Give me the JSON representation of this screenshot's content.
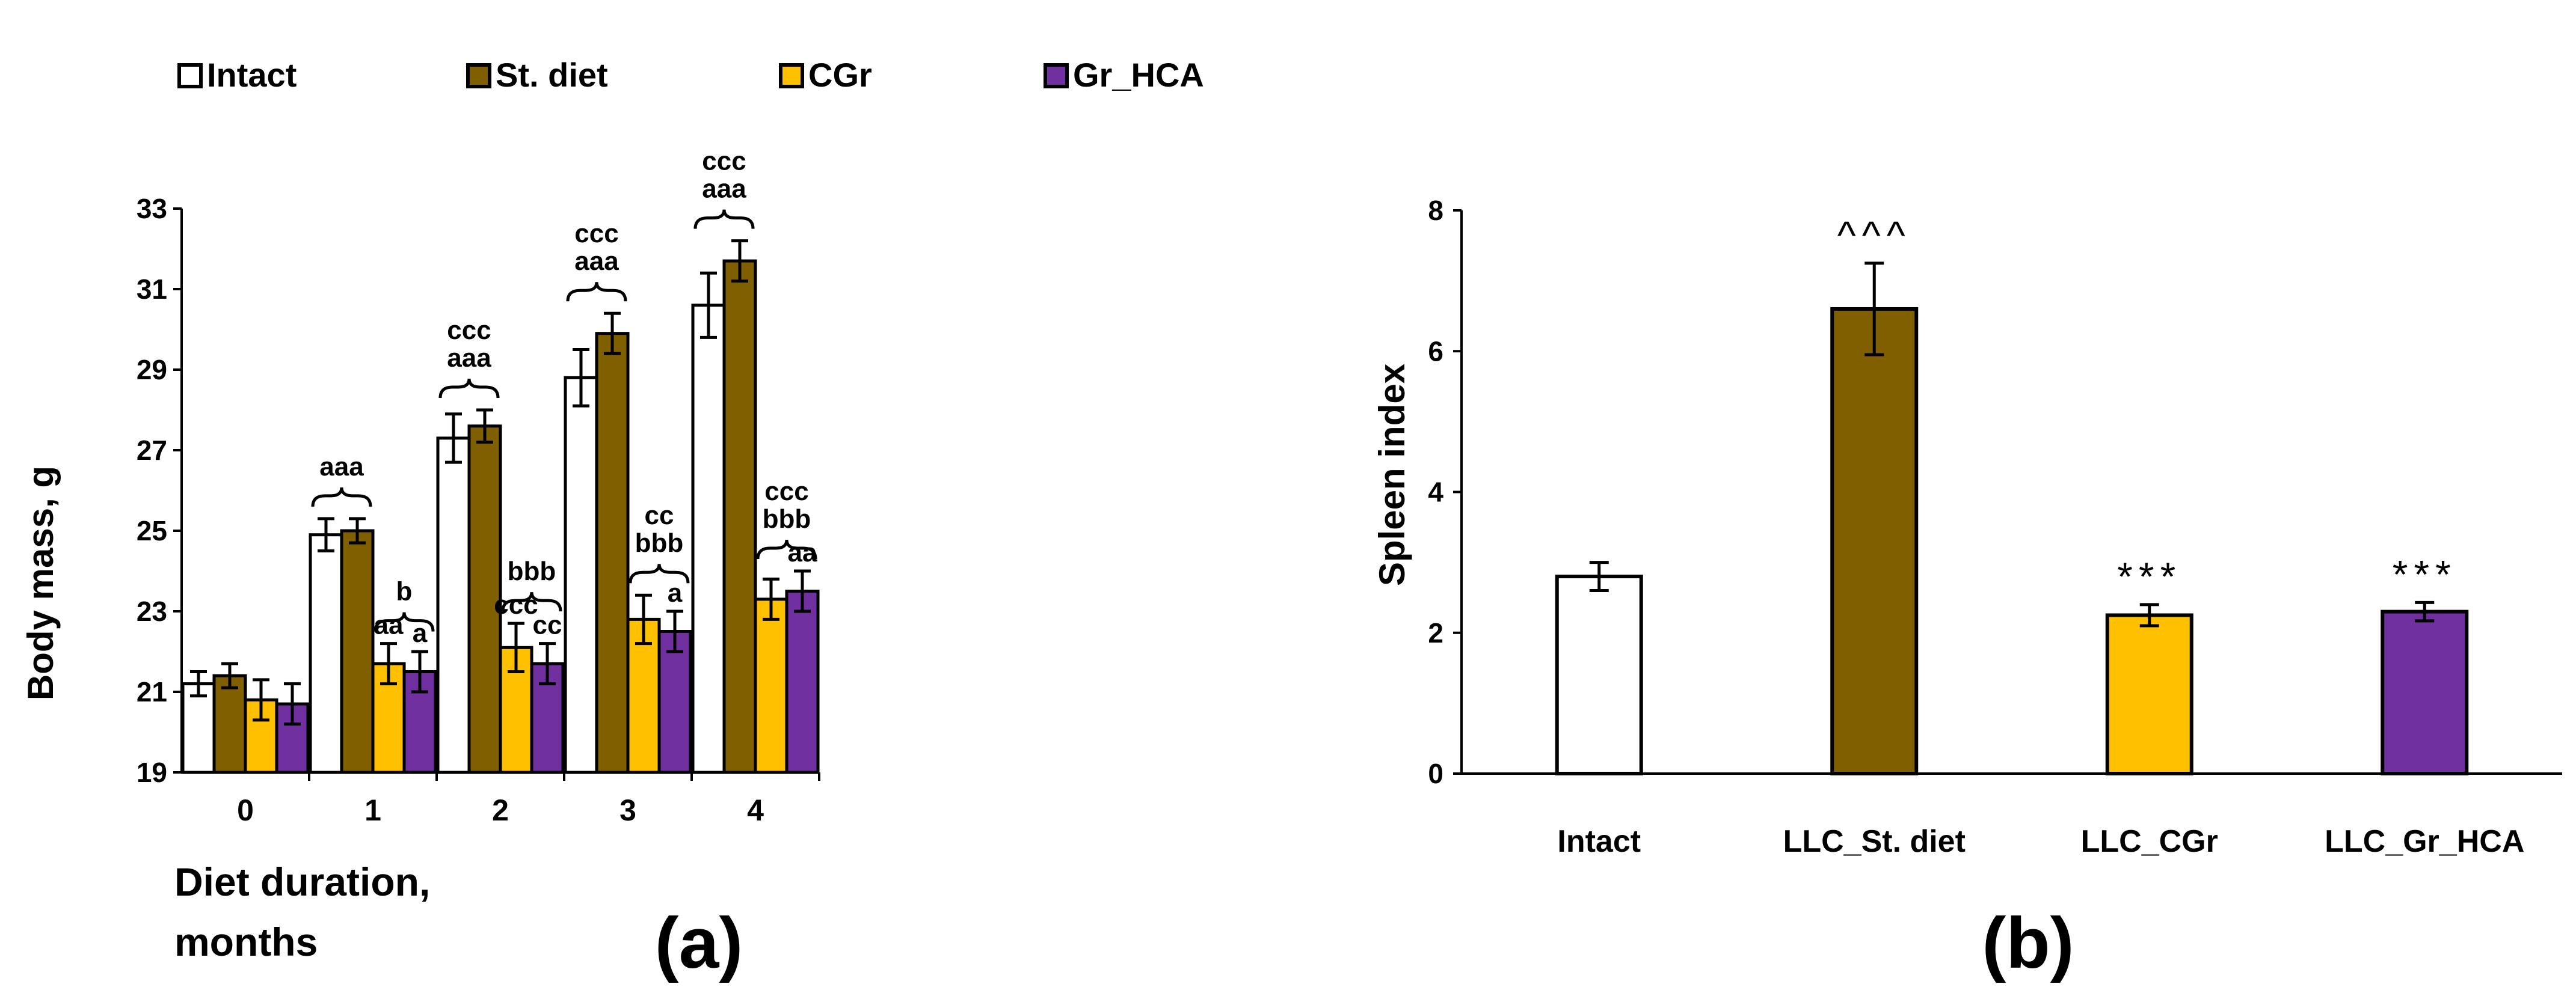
{
  "colors": {
    "intact": "#ffffff",
    "st_diet": "#7f5f00",
    "cgr": "#ffc000",
    "gr_hca": "#7030a0",
    "stroke": "#000000"
  },
  "chart_data": [
    {
      "type": "bar",
      "panel_label": "(a)",
      "xlabel": [
        "Diet duration,",
        "months"
      ],
      "ylabel": "Body mass, g",
      "ylim": [
        19,
        33
      ],
      "yticks": [
        19,
        21,
        23,
        25,
        27,
        29,
        31,
        33
      ],
      "categories": [
        "0",
        "1",
        "2",
        "3",
        "4"
      ],
      "legend_position": "top",
      "series": [
        {
          "name": "Intact",
          "key": "intact",
          "values": [
            21.2,
            24.9,
            27.3,
            28.8,
            30.6
          ],
          "errors": [
            0.3,
            0.4,
            0.6,
            0.7,
            0.8
          ]
        },
        {
          "name": "St. diet",
          "key": "st_diet",
          "values": [
            21.4,
            25.0,
            27.6,
            29.9,
            31.7
          ],
          "errors": [
            0.3,
            0.3,
            0.4,
            0.5,
            0.5
          ]
        },
        {
          "name": "CGr",
          "key": "cgr",
          "values": [
            20.8,
            21.7,
            22.1,
            22.8,
            23.3
          ],
          "errors": [
            0.5,
            0.5,
            0.6,
            0.6,
            0.5
          ]
        },
        {
          "name": "Gr_HCA",
          "key": "gr_hca",
          "values": [
            20.7,
            21.5,
            21.7,
            22.5,
            23.5
          ],
          "errors": [
            0.5,
            0.5,
            0.5,
            0.5,
            0.5
          ]
        }
      ],
      "annotations": [
        {
          "category": 1,
          "span": "left",
          "lines": [
            "aaa"
          ]
        },
        {
          "category": 1,
          "span": "right",
          "lines": [
            "b"
          ]
        },
        {
          "category": 1,
          "series": 2,
          "lines": [
            "aa"
          ]
        },
        {
          "category": 1,
          "series": 3,
          "lines": [
            "a"
          ]
        },
        {
          "category": 2,
          "span": "left",
          "lines": [
            "ccc",
            "aaa"
          ]
        },
        {
          "category": 2,
          "span": "right",
          "lines": [
            "bbb"
          ]
        },
        {
          "category": 2,
          "series": 2,
          "lines": [
            "ccc"
          ]
        },
        {
          "category": 2,
          "series": 3,
          "lines": [
            "cc"
          ]
        },
        {
          "category": 3,
          "span": "left",
          "lines": [
            "ccc",
            "aaa"
          ]
        },
        {
          "category": 3,
          "span": "right",
          "lines": [
            "cc",
            "bbb"
          ]
        },
        {
          "category": 3,
          "series": 3,
          "lines": [
            "a"
          ]
        },
        {
          "category": 4,
          "span": "left",
          "lines": [
            "ccc",
            "aaa"
          ]
        },
        {
          "category": 4,
          "span": "right",
          "lines": [
            "ccc",
            "bbb"
          ]
        },
        {
          "category": 4,
          "series": 3,
          "lines": [
            "aa"
          ]
        }
      ]
    },
    {
      "type": "bar",
      "panel_label": "(b)",
      "xlabel": "",
      "ylabel": "Spleen index",
      "ylim": [
        0,
        8
      ],
      "yticks": [
        0,
        2,
        4,
        6,
        8
      ],
      "categories": [
        "Intact",
        "LLC_St. diet",
        "LLC_CGr",
        "LLC_Gr_HCA"
      ],
      "color_keys": [
        "intact",
        "st_diet",
        "cgr",
        "gr_hca"
      ],
      "values": [
        2.8,
        6.6,
        2.25,
        2.3
      ],
      "errors": [
        0.2,
        0.65,
        0.15,
        0.13
      ],
      "annotations": [
        "",
        "^^^",
        "***",
        "***"
      ]
    }
  ]
}
